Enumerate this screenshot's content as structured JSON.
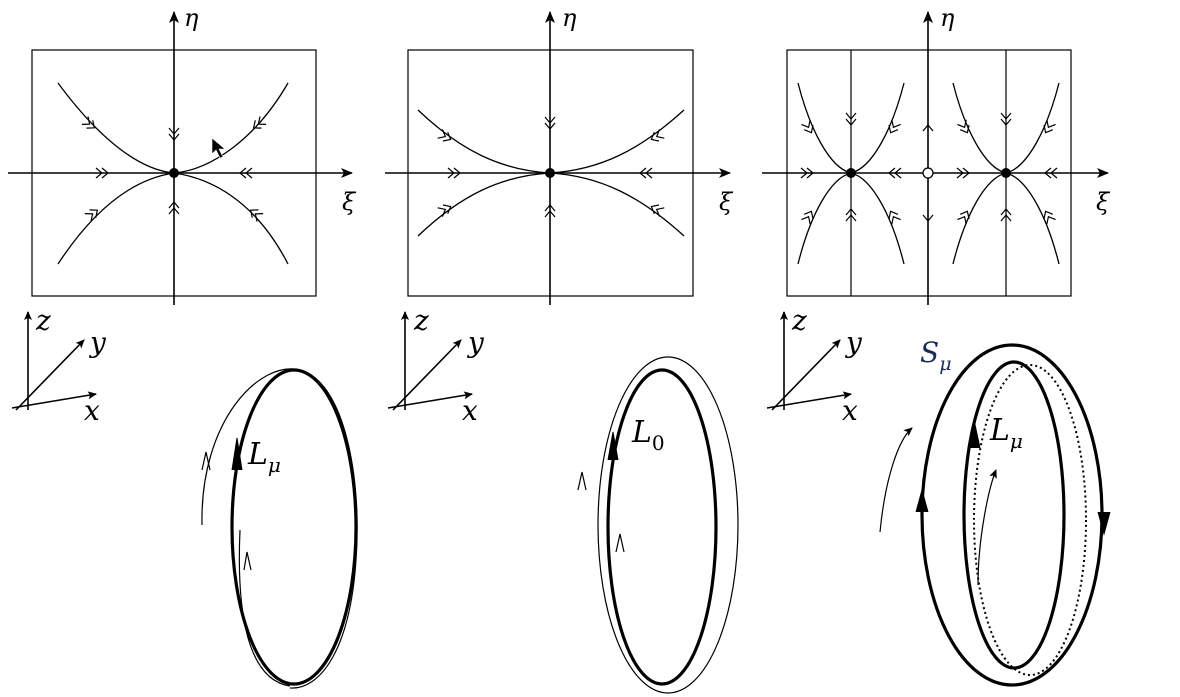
{
  "panels": [
    {
      "eta": "η",
      "xi": "ξ",
      "z": "z",
      "y": "y",
      "x": "x",
      "loop_label": "L",
      "loop_sub": "μ"
    },
    {
      "eta": "η",
      "xi": "ξ",
      "z": "z",
      "y": "y",
      "x": "x",
      "loop_label": "L",
      "loop_sub": "0"
    },
    {
      "eta": "η",
      "xi": "ξ",
      "z": "z",
      "y": "y",
      "x": "x",
      "loop_label": "L",
      "loop_sub": "μ",
      "surface_label": "S",
      "surface_sub": "μ"
    }
  ]
}
